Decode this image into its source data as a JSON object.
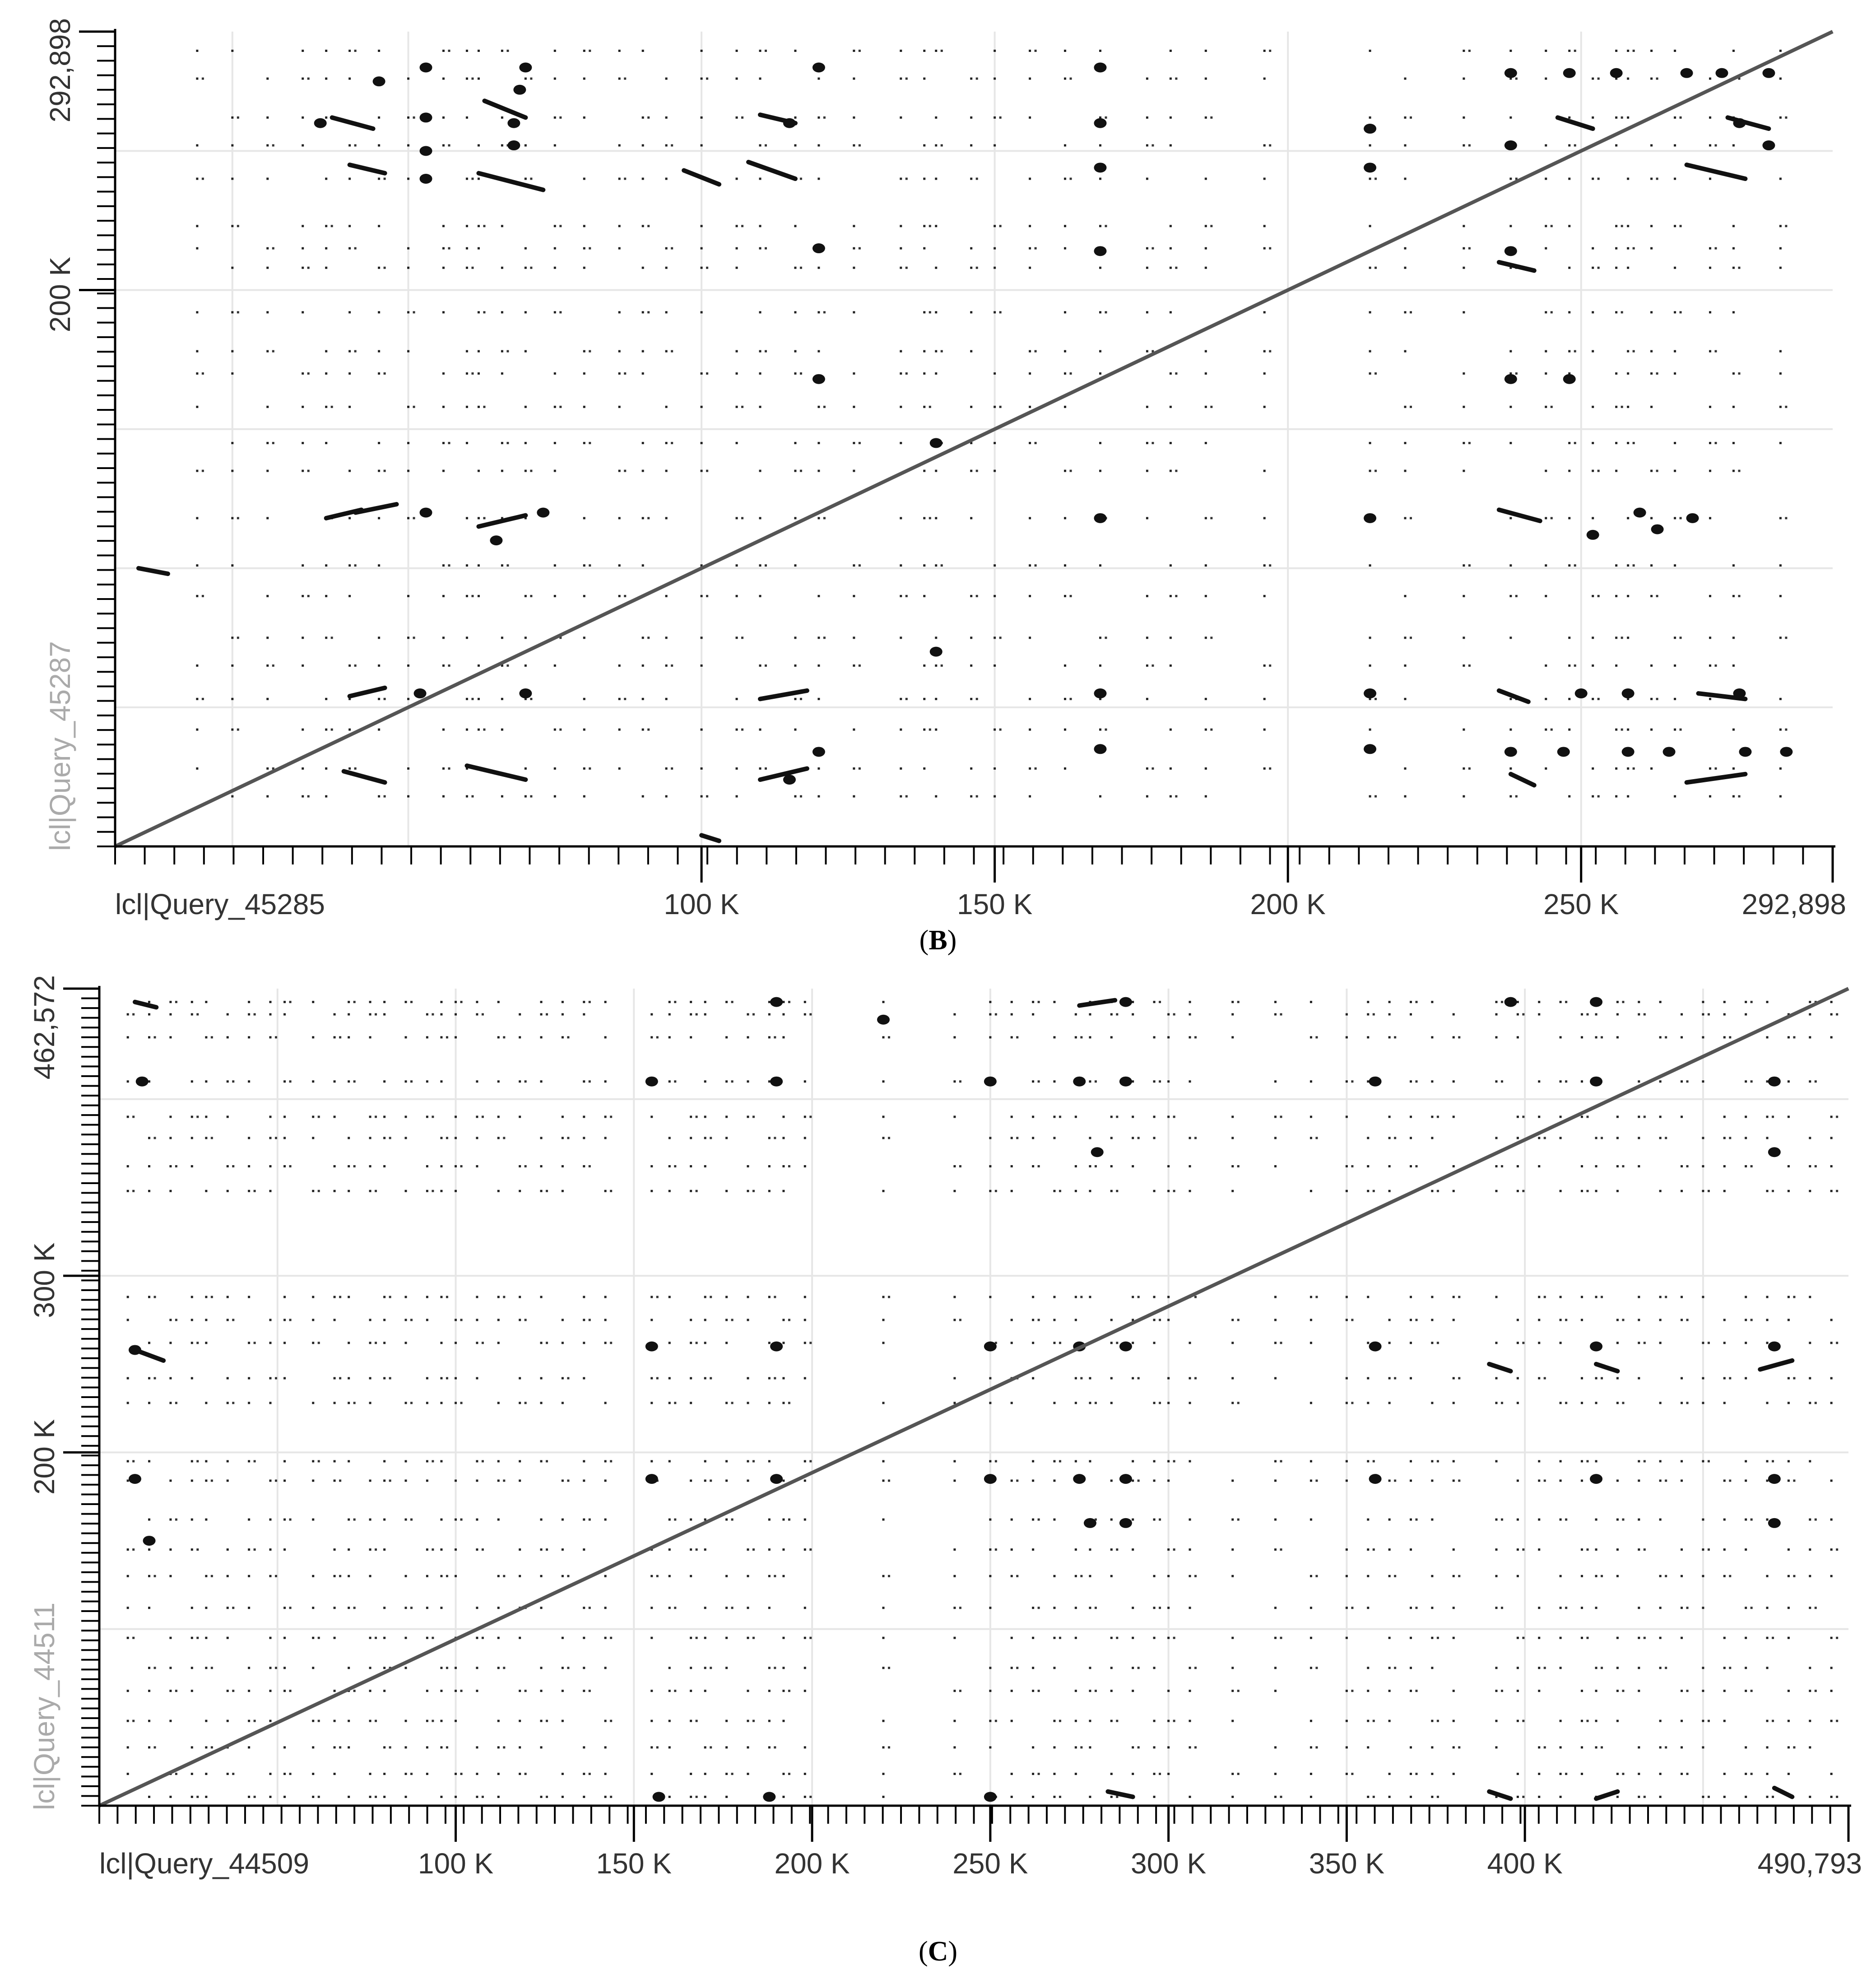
{
  "chart_data": [
    {
      "type": "scatter",
      "panel_label": "B",
      "x_axis": {
        "sequence_label": "lcl|Query_45285",
        "max_label": "292,898",
        "min": 0,
        "max": 292898,
        "ticks": [
          {
            "value": 100000,
            "label": "100 K"
          },
          {
            "value": 150000,
            "label": "150 K"
          },
          {
            "value": 200000,
            "label": "200 K"
          },
          {
            "value": 250000,
            "label": "250 K"
          }
        ],
        "gridlines": [
          20000,
          50000,
          100000,
          150000,
          200000,
          250000
        ]
      },
      "y_axis": {
        "sequence_label": "lcl|Query_45287",
        "max_label": "292,898",
        "min": 0,
        "max": 292898,
        "ticks": [
          {
            "value": 200000,
            "label": "200 K"
          }
        ],
        "gridlines": [
          50000,
          100000,
          150000,
          200000,
          250000
        ]
      },
      "main_diagonal": [
        [
          0,
          0
        ],
        [
          292898,
          292898
        ]
      ],
      "segments": [
        [
          4000,
          100000,
          9000,
          98000
        ],
        [
          40000,
          245000,
          46000,
          242000
        ],
        [
          37000,
          262000,
          44000,
          258000
        ],
        [
          62000,
          242000,
          73000,
          236000
        ],
        [
          63000,
          268000,
          70000,
          262000
        ],
        [
          97000,
          243000,
          103000,
          238000
        ],
        [
          108000,
          246000,
          116000,
          240000
        ],
        [
          110000,
          263000,
          116000,
          260000
        ],
        [
          236000,
          210000,
          242000,
          207000
        ],
        [
          246000,
          262000,
          252000,
          258000
        ],
        [
          268000,
          245000,
          278000,
          240000
        ],
        [
          275000,
          262000,
          282000,
          258000
        ],
        [
          36000,
          118000,
          42000,
          121000
        ],
        [
          41000,
          120000,
          48000,
          123000
        ],
        [
          62000,
          115000,
          70000,
          119000
        ],
        [
          236000,
          121000,
          243000,
          117000
        ],
        [
          40000,
          54000,
          46000,
          57000
        ],
        [
          39000,
          27000,
          46000,
          23000
        ],
        [
          60000,
          29000,
          70000,
          24000
        ],
        [
          110000,
          24000,
          118000,
          28000
        ],
        [
          110000,
          53000,
          118000,
          56000
        ],
        [
          236000,
          56000,
          241000,
          52000
        ],
        [
          238000,
          26000,
          242000,
          22000
        ],
        [
          268000,
          23000,
          278000,
          26000
        ],
        [
          270000,
          55000,
          278000,
          53000
        ],
        [
          100000,
          4000,
          103000,
          2000
        ]
      ],
      "blobs": [
        [
          45000,
          275000
        ],
        [
          69000,
          272000
        ],
        [
          70000,
          280000
        ],
        [
          53000,
          280000
        ],
        [
          53000,
          262000
        ],
        [
          53000,
          240000
        ],
        [
          53000,
          250000
        ],
        [
          35000,
          260000
        ],
        [
          68000,
          260000
        ],
        [
          68000,
          252000
        ],
        [
          115000,
          260000
        ],
        [
          120000,
          280000
        ],
        [
          120000,
          215000
        ],
        [
          168000,
          280000
        ],
        [
          168000,
          260000
        ],
        [
          168000,
          244000
        ],
        [
          168000,
          214000
        ],
        [
          214000,
          258000
        ],
        [
          214000,
          244000
        ],
        [
          238000,
          278000
        ],
        [
          238000,
          252000
        ],
        [
          238000,
          214000
        ],
        [
          248000,
          278000
        ],
        [
          256000,
          278000
        ],
        [
          268000,
          278000
        ],
        [
          274000,
          278000
        ],
        [
          282000,
          278000
        ],
        [
          277000,
          260000
        ],
        [
          282000,
          252000
        ],
        [
          120000,
          168000
        ],
        [
          238000,
          168000
        ],
        [
          248000,
          168000
        ],
        [
          53000,
          120000
        ],
        [
          73000,
          120000
        ],
        [
          168000,
          118000
        ],
        [
          214000,
          118000
        ],
        [
          260000,
          120000
        ],
        [
          263000,
          114000
        ],
        [
          269000,
          118000
        ],
        [
          115000,
          24000
        ],
        [
          120000,
          34000
        ],
        [
          168000,
          35000
        ],
        [
          214000,
          35000
        ],
        [
          238000,
          34000
        ],
        [
          247000,
          34000
        ],
        [
          258000,
          34000
        ],
        [
          265000,
          34000
        ],
        [
          278000,
          34000
        ],
        [
          285000,
          34000
        ],
        [
          52000,
          55000
        ],
        [
          70000,
          55000
        ],
        [
          168000,
          55000
        ],
        [
          214000,
          55000
        ],
        [
          250000,
          55000
        ],
        [
          258000,
          55000
        ],
        [
          277000,
          55000
        ],
        [
          140000,
          70000
        ],
        [
          140000,
          145000
        ],
        [
          65000,
          110000
        ],
        [
          252000,
          112000
        ]
      ],
      "dot_columns": [
        14000,
        20000,
        26000,
        32000,
        36000,
        40000,
        45000,
        50000,
        56000,
        60000,
        62000,
        66000,
        70000,
        75000,
        80000,
        86000,
        90000,
        94000,
        100000,
        106000,
        110000,
        116000,
        120000,
        126000,
        134000,
        138000,
        140000,
        146000,
        150000,
        156000,
        162000,
        168000,
        176000,
        180000,
        186000,
        196000,
        214000,
        220000,
        230000,
        238000,
        244000,
        248000,
        252000,
        256000,
        258000,
        262000,
        266000,
        272000,
        276000,
        284000
      ],
      "dot_rows": [
        18000,
        28000,
        42000,
        53000,
        65000,
        75000,
        90000,
        101000,
        118000,
        135000,
        145000,
        158000,
        170000,
        178000,
        192000,
        208000,
        215000,
        223000,
        240000,
        252000,
        262000,
        276000,
        286000
      ]
    },
    {
      "type": "scatter",
      "panel_label": "C",
      "x_axis": {
        "sequence_label": "lcl|Query_44509",
        "max_label": "490,793",
        "min": 0,
        "max": 490793,
        "ticks": [
          {
            "value": 100000,
            "label": "100 K"
          },
          {
            "value": 150000,
            "label": "150 K"
          },
          {
            "value": 200000,
            "label": "200 K"
          },
          {
            "value": 250000,
            "label": "250 K"
          },
          {
            "value": 300000,
            "label": "300 K"
          },
          {
            "value": 350000,
            "label": "350 K"
          },
          {
            "value": 400000,
            "label": "400 K"
          }
        ],
        "gridlines": [
          50000,
          100000,
          150000,
          200000,
          250000,
          300000,
          350000,
          400000,
          450000
        ]
      },
      "y_axis": {
        "sequence_label": "lcl|Query_44511",
        "max_label": "462,572",
        "min": 0,
        "max": 462572,
        "ticks": [
          {
            "value": 200000,
            "label": "200 K"
          },
          {
            "value": 300000,
            "label": "300 K"
          }
        ],
        "gridlines": [
          100000,
          200000,
          300000,
          400000
        ]
      },
      "main_diagonal": [
        [
          0,
          0
        ],
        [
          490793,
          462572
        ]
      ],
      "segments": [
        [
          275000,
          453000,
          285000,
          456000
        ],
        [
          283000,
          8000,
          290000,
          5000
        ],
        [
          390000,
          8000,
          396000,
          4000
        ],
        [
          420000,
          4000,
          426000,
          8000
        ],
        [
          470000,
          10000,
          475000,
          5000
        ],
        [
          466000,
          247000,
          475000,
          252000
        ],
        [
          10000,
          258000,
          18000,
          252000
        ],
        [
          10000,
          455000,
          16000,
          452000
        ],
        [
          390000,
          250000,
          396000,
          246000
        ],
        [
          420000,
          250000,
          426000,
          246000
        ]
      ],
      "blobs": [
        [
          10000,
          185000
        ],
        [
          14000,
          150000
        ],
        [
          10000,
          258000
        ],
        [
          12000,
          410000
        ],
        [
          155000,
          260000
        ],
        [
          155000,
          185000
        ],
        [
          155000,
          410000
        ],
        [
          157000,
          5000
        ],
        [
          190000,
          260000
        ],
        [
          190000,
          185000
        ],
        [
          190000,
          410000
        ],
        [
          190000,
          455000
        ],
        [
          188000,
          5000
        ],
        [
          220000,
          445000
        ],
        [
          250000,
          185000
        ],
        [
          250000,
          410000
        ],
        [
          250000,
          260000
        ],
        [
          250000,
          5000
        ],
        [
          275000,
          410000
        ],
        [
          275000,
          185000
        ],
        [
          278000,
          160000
        ],
        [
          275000,
          260000
        ],
        [
          288000,
          410000
        ],
        [
          288000,
          455000
        ],
        [
          288000,
          260000
        ],
        [
          288000,
          185000
        ],
        [
          288000,
          160000
        ],
        [
          280000,
          370000
        ],
        [
          358000,
          410000
        ],
        [
          358000,
          185000
        ],
        [
          358000,
          260000
        ],
        [
          420000,
          410000
        ],
        [
          420000,
          185000
        ],
        [
          420000,
          260000
        ],
        [
          420000,
          455000
        ],
        [
          470000,
          410000
        ],
        [
          470000,
          185000
        ],
        [
          470000,
          160000
        ],
        [
          470000,
          370000
        ],
        [
          470000,
          260000
        ],
        [
          396000,
          455000
        ]
      ],
      "dot_columns": [
        8000,
        14000,
        20000,
        26000,
        30000,
        36000,
        42000,
        48000,
        52000,
        60000,
        66000,
        70000,
        76000,
        80000,
        86000,
        92000,
        96000,
        100000,
        106000,
        112000,
        118000,
        124000,
        130000,
        136000,
        142000,
        155000,
        160000,
        166000,
        170000,
        176000,
        182000,
        188000,
        192000,
        198000,
        220000,
        240000,
        250000,
        256000,
        262000,
        268000,
        274000,
        278000,
        284000,
        290000,
        296000,
        300000,
        306000,
        318000,
        330000,
        340000,
        350000,
        356000,
        362000,
        368000,
        374000,
        380000,
        392000,
        398000,
        404000,
        410000,
        416000,
        420000,
        426000,
        432000,
        438000,
        444000,
        450000,
        456000,
        462000,
        468000,
        474000,
        480000,
        486000
      ],
      "dot_rows": [
        5000,
        18000,
        33000,
        48000,
        65000,
        78000,
        95000,
        112000,
        130000,
        145000,
        162000,
        184000,
        195000,
        228000,
        242000,
        262000,
        275000,
        288000,
        348000,
        362000,
        378000,
        390000,
        410000,
        435000,
        448000,
        455000
      ]
    }
  ]
}
